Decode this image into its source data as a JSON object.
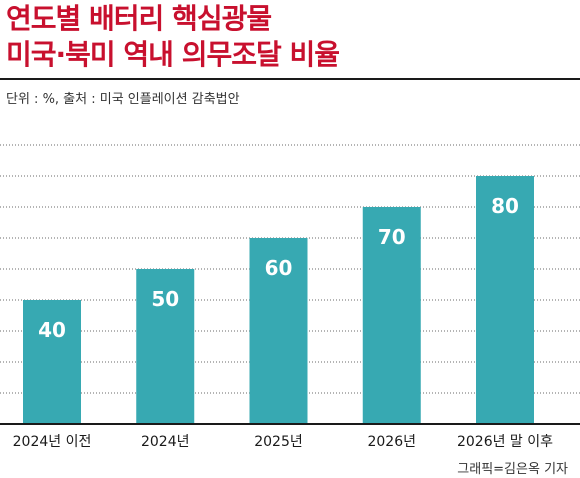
{
  "header": {
    "title_line1": "연도별 배터리 핵심광물",
    "title_line2": "미국·북미 역내 의무조달 비율",
    "meta": "단위 : %, 출처 : 미국 인플레이션 감축법안",
    "credit": "그래픽=김은옥 기자"
  },
  "colors": {
    "title": "#c8102e",
    "bar": "#37a9b2",
    "grid": "#6a6a6a",
    "baseline": "#1a1a1a"
  },
  "chart_data": {
    "type": "bar",
    "categories": [
      "2024년 이전",
      "2024년",
      "2025년",
      "2026년",
      "2026년 말 이후"
    ],
    "values": [
      40,
      50,
      60,
      70,
      80
    ],
    "title": "",
    "xlabel": "",
    "ylabel": "",
    "ylim": [
      0,
      90
    ],
    "grid": true,
    "data_labels": true
  }
}
